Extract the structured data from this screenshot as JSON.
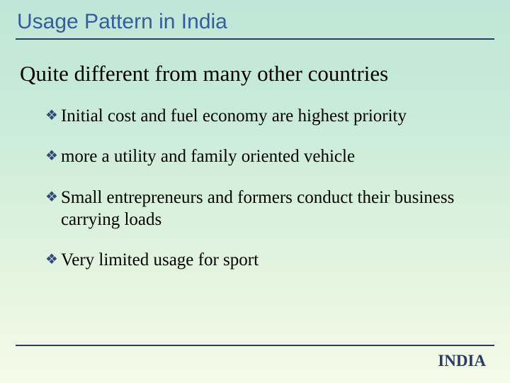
{
  "title": "Usage Pattern in India",
  "subtitle": "Quite different from many other countries",
  "bullets": [
    "Initial cost and fuel economy are highest priority",
    "more a utility and family oriented  vehicle",
    "Small entrepreneurs and formers conduct their business carrying loads",
    "Very limited usage for sport"
  ],
  "footer": "INDIA",
  "colors": {
    "title_color": "#355c9e",
    "rule_color": "#2b3a66",
    "bullet_color": "#2f4a7a",
    "text_color": "#000000",
    "bg_top": "#bfe6d8",
    "bg_bottom": "#f5fbe8"
  },
  "fonts": {
    "title_family": "Comic Sans MS",
    "body_family": "Times New Roman",
    "title_size_pt": 22,
    "subtitle_size_pt": 23,
    "bullet_size_pt": 19,
    "footer_size_pt": 17
  }
}
